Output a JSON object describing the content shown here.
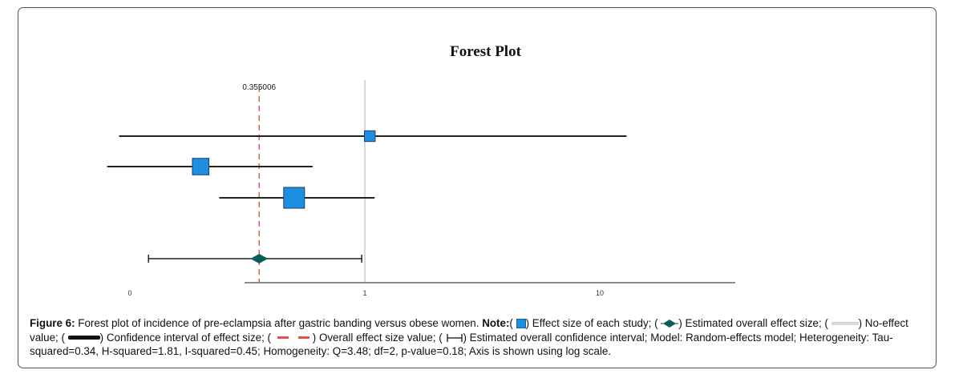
{
  "chart_data": {
    "type": "forest",
    "title": "Forest Plot",
    "x_scale": "log",
    "x_ticks": [
      {
        "value": 0.1,
        "label": "0"
      },
      {
        "value": 1,
        "label": "1"
      },
      {
        "value": 10,
        "label": "10"
      }
    ],
    "no_effect_value": 1,
    "overall_effect_value": 0.355006,
    "overall_effect_label": "0.355006",
    "studies": [
      {
        "effect": 1.05,
        "ci_low": 0.09,
        "ci_high": 13.0,
        "weight": 0.15
      },
      {
        "effect": 0.2,
        "ci_low": 0.08,
        "ci_high": 0.6,
        "weight": 0.35
      },
      {
        "effect": 0.5,
        "ci_low": 0.24,
        "ci_high": 1.1,
        "weight": 0.5
      }
    ],
    "overall": {
      "effect": 0.355006,
      "ci_low": 0.12,
      "ci_high": 0.97
    },
    "colors": {
      "study_box": "#1e8fe0",
      "diamond": "#0b5d5a",
      "overall_line": "#d9635c",
      "no_effect_line": "#cccccc"
    }
  },
  "caption": {
    "figure_label": "Figure 6:",
    "lead": "Forest plot of incidence of pre-eclampsia after gastric banding versus obese women.",
    "note_label": "Note:",
    "p1_open": "(",
    "p1": ") Effect size of each study; (",
    "p2": ") Estimated overall effect size; (",
    "p3": ") No-effect value; (",
    "p4": ") Confidence interval of effect size;   (",
    "p5": ") Overall effect size value; (",
    "p6": ") Estimated overall confidence interval; Model: Random-effects model; Heterogeneity: Tau-squared=0.34, H-squared=1.81, I-squared=0.45; Homogeneity: Q=3.48; df=2, p-value=0.18; Axis is shown using log scale."
  }
}
